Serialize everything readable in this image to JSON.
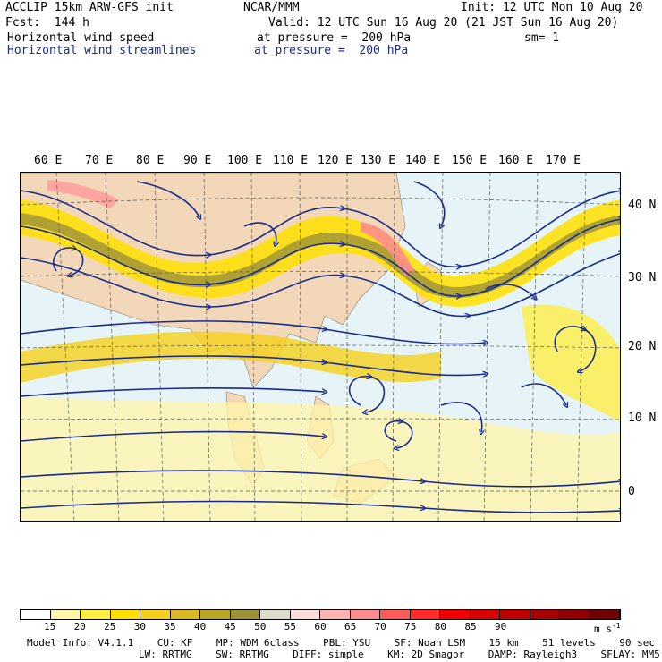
{
  "header": {
    "title": "ACCLIP 15km ARW-GFS init",
    "org": "NCAR/MMM",
    "init": "Init: 12 UTC Mon 10 Aug 20",
    "fcst": "Fcst:  144 h",
    "valid": "Valid: 12 UTC Sun 16 Aug 20 (21 JST Sun 16 Aug 20)",
    "field1": "Horizontal wind speed",
    "field1_level": "at pressure =  200 hPa",
    "field1_sm": "sm= 1",
    "field2": "Horizontal wind streamlines",
    "field2_level": "at pressure =  200 hPa"
  },
  "lon_labels": [
    "60 E",
    "70 E",
    "80 E",
    "90 E",
    "100 E",
    "110 E",
    "120 E",
    "130 E",
    "140 E",
    "150 E",
    "160 E",
    "170 E"
  ],
  "lat_labels": [
    "40 N",
    "30 N",
    "20 N",
    "10 N",
    "0"
  ],
  "colorbar": {
    "ticks": [
      "15",
      "20",
      "25",
      "30",
      "35",
      "40",
      "45",
      "50",
      "55",
      "60",
      "65",
      "70",
      "75",
      "80",
      "85",
      "90"
    ],
    "unit": "m s",
    "unit_exp": "-1",
    "colors": [
      "#ffffff",
      "#fff5a8",
      "#ffee44",
      "#ffe000",
      "#f5cf1a",
      "#d9b820",
      "#b8a628",
      "#9c9238",
      "#dcdcc8",
      "#ffdcdc",
      "#ffb4b4",
      "#ff8c8c",
      "#ff5a5a",
      "#ff2a2a",
      "#f00000",
      "#d80000",
      "#c00000",
      "#a80000",
      "#900000",
      "#700000"
    ]
  },
  "footer": {
    "line1": [
      "Model Info: V4.1.1",
      "CU: KF",
      "MP: WDM 6class",
      "PBL: YSU",
      "SF: Noah LSM",
      "15 km",
      "51 levels",
      "90 sec"
    ],
    "line2": [
      "LW: RRTMG",
      "SW: RRTMG",
      "DIFF: simple",
      "KM: 2D Smagor",
      "DAMP: Rayleigh3",
      "SFLAY: MM5"
    ]
  }
}
